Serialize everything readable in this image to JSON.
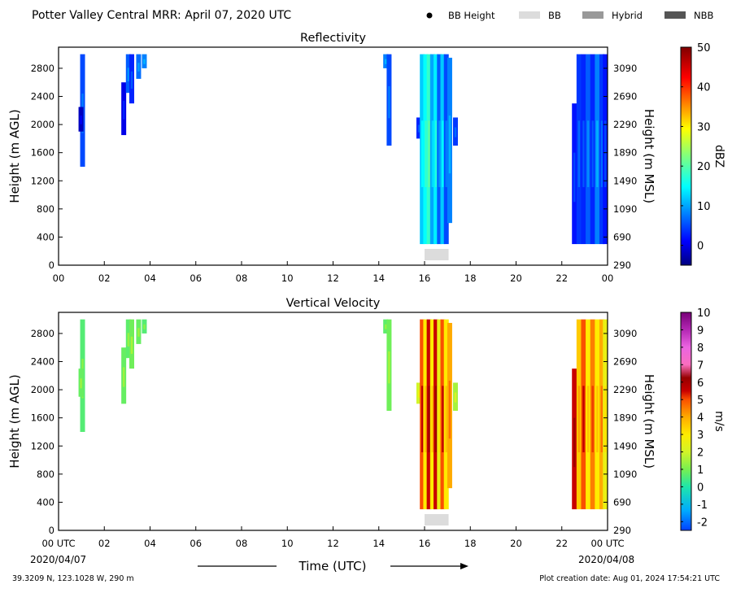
{
  "figure": {
    "title": "Potter Valley Central MRR:  April 07, 2020 UTC",
    "legend": [
      {
        "label": "BB Height",
        "kind": "dot",
        "color": "#000000"
      },
      {
        "label": "BB",
        "kind": "swatch",
        "color": "#dcdcdc"
      },
      {
        "label": "Hybrid",
        "kind": "swatch",
        "color": "#999999"
      },
      {
        "label": "NBB",
        "kind": "swatch",
        "color": "#555555"
      }
    ],
    "xlabel": "Time (UTC)",
    "start_date": "2020/04/07",
    "end_date": "2020/04/08",
    "footer_left": "39.3209 N, 123.1028 W, 290 m",
    "footer_right": "Plot creation date: Aug 01, 2024 17:54:21 UTC"
  },
  "chart_data": [
    {
      "type": "heatmap",
      "title": "Reflectivity",
      "ylabel": "Height (m AGL)",
      "ylabel_right": "Height (m MSL)",
      "colorbar_label": "dBZ",
      "colorbar_range": [
        -5,
        50
      ],
      "colorbar_ticks": [
        0,
        10,
        20,
        30,
        40,
        50
      ],
      "xlim": [
        0,
        24
      ],
      "x_ticks": [
        "00",
        "02",
        "04",
        "06",
        "08",
        "10",
        "12",
        "14",
        "16",
        "18",
        "20",
        "22",
        "00"
      ],
      "ylim": [
        0,
        3100
      ],
      "y_ticks": [
        0,
        400,
        800,
        1200,
        1600,
        2000,
        2400,
        2800
      ],
      "y_ticks_right": [
        290,
        690,
        1090,
        1490,
        1890,
        2290,
        2690,
        3090
      ],
      "bright_band": [
        {
          "type": "BB",
          "start_hr": 16.0,
          "end_hr": 17.05
        }
      ],
      "streaks": [
        {
          "t": 1.05,
          "y0": 1400,
          "y1": 3000,
          "v": 5
        },
        {
          "t": 0.98,
          "y0": 1900,
          "y1": 2250,
          "v": -2
        },
        {
          "t": 2.85,
          "y0": 1850,
          "y1": 2600,
          "v": 0
        },
        {
          "t": 3.05,
          "y0": 2450,
          "y1": 3000,
          "v": 6
        },
        {
          "t": 3.2,
          "y0": 2300,
          "y1": 3000,
          "v": 3
        },
        {
          "t": 3.5,
          "y0": 2650,
          "y1": 3000,
          "v": 7
        },
        {
          "t": 3.75,
          "y0": 2800,
          "y1": 3000,
          "v": 8
        },
        {
          "t": 14.3,
          "y0": 2800,
          "y1": 3000,
          "v": 8
        },
        {
          "t": 14.45,
          "y0": 1700,
          "y1": 3000,
          "v": 5
        },
        {
          "t": 15.75,
          "y0": 1800,
          "y1": 2100,
          "v": 3
        },
        {
          "t": 15.9,
          "y0": 300,
          "y1": 3000,
          "v": 12
        },
        {
          "t": 16.05,
          "y0": 300,
          "y1": 3000,
          "v": 15
        },
        {
          "t": 16.2,
          "y0": 300,
          "y1": 3000,
          "v": 18
        },
        {
          "t": 16.35,
          "y0": 300,
          "y1": 3000,
          "v": 10
        },
        {
          "t": 16.5,
          "y0": 300,
          "y1": 3000,
          "v": 14
        },
        {
          "t": 16.65,
          "y0": 300,
          "y1": 3000,
          "v": 6
        },
        {
          "t": 16.8,
          "y0": 300,
          "y1": 3000,
          "v": 12
        },
        {
          "t": 16.95,
          "y0": 300,
          "y1": 3000,
          "v": 5
        },
        {
          "t": 17.1,
          "y0": 600,
          "y1": 2950,
          "v": 8
        },
        {
          "t": 17.35,
          "y0": 1700,
          "y1": 2100,
          "v": 4
        },
        {
          "t": 22.55,
          "y0": 300,
          "y1": 2300,
          "v": 2
        },
        {
          "t": 22.75,
          "y0": 300,
          "y1": 3000,
          "v": 4
        },
        {
          "t": 22.95,
          "y0": 300,
          "y1": 3000,
          "v": 3
        },
        {
          "t": 23.15,
          "y0": 300,
          "y1": 3000,
          "v": 6
        },
        {
          "t": 23.35,
          "y0": 300,
          "y1": 3000,
          "v": 3
        },
        {
          "t": 23.55,
          "y0": 300,
          "y1": 3000,
          "v": 8
        },
        {
          "t": 23.75,
          "y0": 300,
          "y1": 3000,
          "v": 4
        },
        {
          "t": 23.9,
          "y0": 300,
          "y1": 3000,
          "v": 2
        }
      ]
    },
    {
      "type": "heatmap",
      "title": "Vertical Velocity",
      "ylabel": "Height (m AGL)",
      "ylabel_right": "Height (m MSL)",
      "colorbar_label": "m/s",
      "colorbar_range": [
        -2.5,
        10
      ],
      "colorbar_ticks": [
        -2,
        -1,
        0,
        1,
        2,
        3,
        4,
        5,
        6,
        7,
        8,
        9,
        10
      ],
      "xlim": [
        0,
        24
      ],
      "x_ticks": [
        "00 UTC",
        "02",
        "04",
        "06",
        "08",
        "10",
        "12",
        "14",
        "16",
        "18",
        "20",
        "22",
        "00 UTC"
      ],
      "ylim": [
        0,
        3100
      ],
      "y_ticks": [
        0,
        400,
        800,
        1200,
        1600,
        2000,
        2400,
        2800
      ],
      "y_ticks_right": [
        290,
        690,
        1090,
        1490,
        1890,
        2290,
        2690,
        3090
      ],
      "bright_band": [
        {
          "type": "BB",
          "start_hr": 16.0,
          "end_hr": 17.05
        }
      ],
      "streaks": [
        {
          "t": 1.05,
          "y0": 1400,
          "y1": 3000,
          "v": 0.6
        },
        {
          "t": 0.98,
          "y0": 1900,
          "y1": 2300,
          "v": 0.8
        },
        {
          "t": 2.85,
          "y0": 1800,
          "y1": 2600,
          "v": 0.8
        },
        {
          "t": 3.05,
          "y0": 2450,
          "y1": 3000,
          "v": 0.7
        },
        {
          "t": 3.2,
          "y0": 2300,
          "y1": 3000,
          "v": 0.9
        },
        {
          "t": 3.5,
          "y0": 2650,
          "y1": 3000,
          "v": 0.8
        },
        {
          "t": 3.75,
          "y0": 2800,
          "y1": 3000,
          "v": 0.6
        },
        {
          "t": 14.3,
          "y0": 2800,
          "y1": 3000,
          "v": 0.7
        },
        {
          "t": 14.45,
          "y0": 1700,
          "y1": 3000,
          "v": 0.9
        },
        {
          "t": 15.75,
          "y0": 1800,
          "y1": 2100,
          "v": 2.0
        },
        {
          "t": 15.9,
          "y0": 300,
          "y1": 3000,
          "v": 5.0
        },
        {
          "t": 16.05,
          "y0": 300,
          "y1": 3000,
          "v": 3.0
        },
        {
          "t": 16.2,
          "y0": 300,
          "y1": 3000,
          "v": 5.5
        },
        {
          "t": 16.35,
          "y0": 300,
          "y1": 3000,
          "v": 3.0
        },
        {
          "t": 16.5,
          "y0": 300,
          "y1": 3000,
          "v": 5.5
        },
        {
          "t": 16.65,
          "y0": 300,
          "y1": 3000,
          "v": 2.5
        },
        {
          "t": 16.8,
          "y0": 300,
          "y1": 3000,
          "v": 5.0
        },
        {
          "t": 16.95,
          "y0": 300,
          "y1": 3000,
          "v": 3.0
        },
        {
          "t": 17.1,
          "y0": 600,
          "y1": 2950,
          "v": 4.0
        },
        {
          "t": 17.35,
          "y0": 1700,
          "y1": 2100,
          "v": 1.5
        },
        {
          "t": 22.55,
          "y0": 300,
          "y1": 2300,
          "v": 5.5
        },
        {
          "t": 22.75,
          "y0": 300,
          "y1": 3000,
          "v": 3.5
        },
        {
          "t": 22.95,
          "y0": 300,
          "y1": 3000,
          "v": 5.0
        },
        {
          "t": 23.15,
          "y0": 300,
          "y1": 3000,
          "v": 3.0
        },
        {
          "t": 23.35,
          "y0": 300,
          "y1": 3000,
          "v": 4.5
        },
        {
          "t": 23.55,
          "y0": 300,
          "y1": 3000,
          "v": 3.0
        },
        {
          "t": 23.75,
          "y0": 300,
          "y1": 3000,
          "v": 4.0
        },
        {
          "t": 23.9,
          "y0": 300,
          "y1": 3000,
          "v": 2.5
        }
      ]
    }
  ]
}
